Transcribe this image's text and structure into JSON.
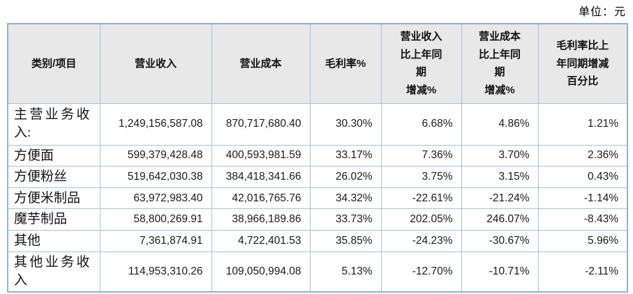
{
  "unit_label": "单位：元",
  "table": {
    "headers": [
      "类别/项目",
      "营业收入",
      "营业成本",
      "毛利率%",
      "营业收入\n比上年同\n期\n增减%",
      "营业成本\n比上年同\n期\n增减%",
      "毛利率比上\n年同期增减\n百分比"
    ],
    "rows": [
      {
        "label": "主营业务收入:",
        "cells": [
          "1,249,156,587.08",
          "870,717,680.40",
          "30.30%",
          "6.68%",
          "4.86%",
          "1.21%"
        ]
      },
      {
        "label": "方便面",
        "cells": [
          "599,379,428.48",
          "400,593,981.59",
          "33.17%",
          "7.36%",
          "3.70%",
          "2.36%"
        ]
      },
      {
        "label": "方便粉丝",
        "cells": [
          "519,642,030.38",
          "384,418,341.66",
          "26.02%",
          "3.75%",
          "3.15%",
          "0.43%"
        ]
      },
      {
        "label": "方便米制品",
        "cells": [
          "63,972,983.40",
          "42,016,765.76",
          "34.32%",
          "-22.61%",
          "-21.24%",
          "-1.14%"
        ]
      },
      {
        "label": "魔芋制品",
        "cells": [
          "58,800,269.91",
          "38,966,189.86",
          "33.73%",
          "202.05%",
          "246.07%",
          "-8.43%"
        ]
      },
      {
        "label": "其他",
        "cells": [
          "7,361,874.91",
          "4,722,401.53",
          "35.85%",
          "-24.23%",
          "-30.67%",
          "5.96%"
        ]
      },
      {
        "label": "其他业务收入",
        "cells": [
          "114,953,310.26",
          "109,050,994.08",
          "5.13%",
          "-12.70%",
          "-10.71%",
          "-2.11%"
        ]
      }
    ]
  },
  "colors": {
    "border": "#9fc3e2",
    "outer_border": "#8fb4d4",
    "header_bg": "#e8e8e8",
    "text": "#1a1a1a"
  }
}
